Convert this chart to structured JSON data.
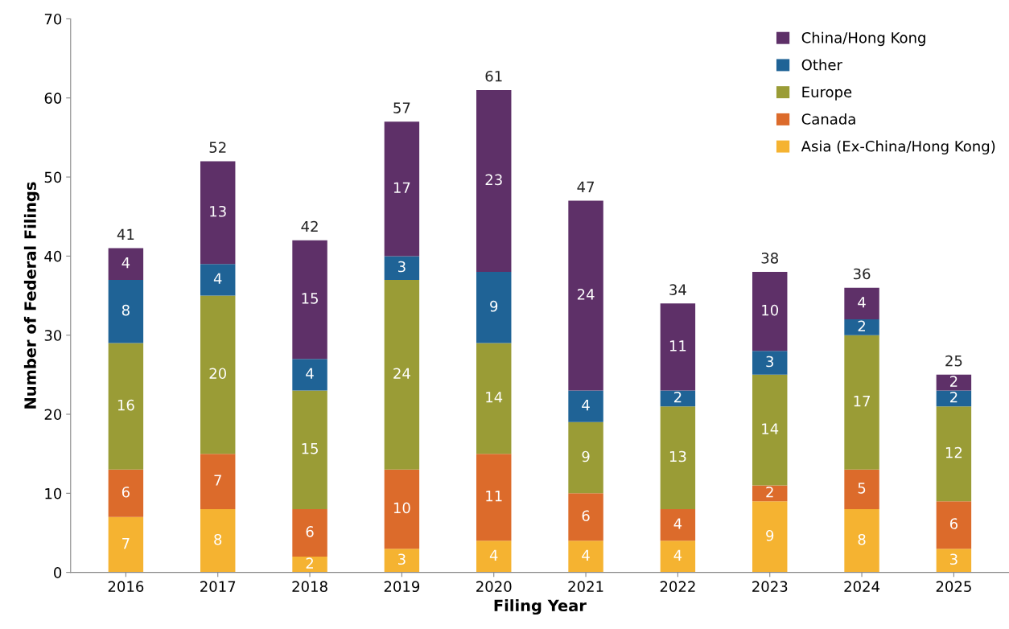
{
  "chart_data": {
    "type": "bar",
    "stacked": true,
    "xlabel": "Filing Year",
    "ylabel": "Number of Federal Filings",
    "categories": [
      "2016",
      "2017",
      "2018",
      "2019",
      "2020",
      "2021",
      "2022",
      "2023",
      "2024",
      "2025"
    ],
    "series": [
      {
        "name": "Asia (Ex-China/Hong Kong)",
        "color": "#f5b331",
        "values": [
          7,
          8,
          2,
          3,
          4,
          4,
          4,
          9,
          8,
          3
        ]
      },
      {
        "name": "Canada",
        "color": "#dc6b2b",
        "values": [
          6,
          7,
          6,
          10,
          11,
          6,
          4,
          2,
          5,
          6
        ]
      },
      {
        "name": "Europe",
        "color": "#9a9c36",
        "values": [
          16,
          20,
          15,
          24,
          14,
          9,
          13,
          14,
          17,
          12
        ]
      },
      {
        "name": "Other",
        "color": "#1f6396",
        "values": [
          8,
          4,
          4,
          3,
          9,
          4,
          2,
          3,
          2,
          2
        ]
      },
      {
        "name": "China/Hong Kong",
        "color": "#5e3068",
        "values": [
          4,
          13,
          15,
          17,
          23,
          24,
          11,
          10,
          4,
          2
        ]
      }
    ],
    "totals": [
      "41",
      "52",
      "42",
      "57",
      "61",
      "47",
      "34",
      "38",
      "36",
      "25"
    ],
    "data_labels": true,
    "ylim": [
      0,
      70
    ],
    "yticks": [
      0,
      10,
      20,
      30,
      40,
      50,
      60,
      70
    ],
    "grid": false,
    "legend": "top right"
  }
}
